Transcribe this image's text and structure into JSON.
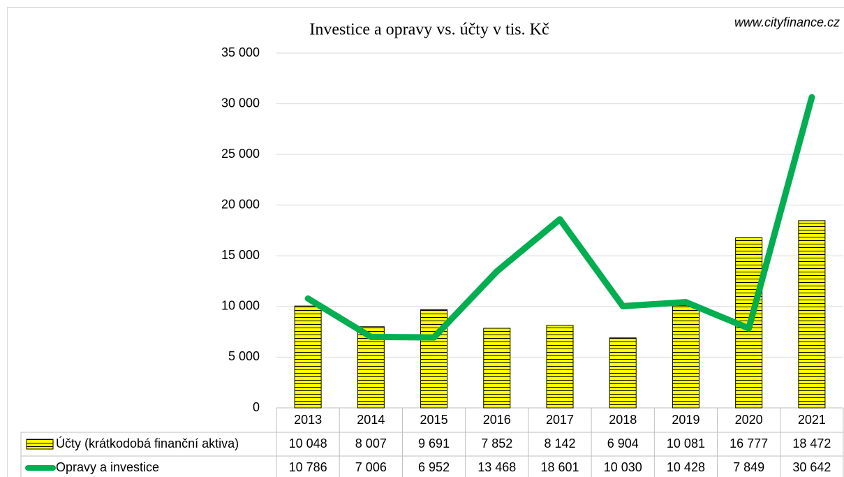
{
  "chart_data": {
    "type": "bar",
    "title": "Investice a opravy vs. účty v tis. Kč",
    "source": "www.cityfinance.cz",
    "categories": [
      "2013",
      "2014",
      "2015",
      "2016",
      "2017",
      "2018",
      "2019",
      "2020",
      "2021"
    ],
    "series": [
      {
        "name": "Účty (krátkodobá finanční aktiva)",
        "type": "bar",
        "color": "#ffff00",
        "values": [
          10048,
          8007,
          9691,
          7852,
          8142,
          6904,
          10081,
          16777,
          18472
        ],
        "value_labels": [
          "10 048",
          "8 007",
          "9 691",
          "7 852",
          "8 142",
          "6 904",
          "10 081",
          "16 777",
          "18 472"
        ]
      },
      {
        "name": "Opravy a investice",
        "type": "line",
        "color": "#00b050",
        "values": [
          10786,
          7006,
          6952,
          13468,
          18601,
          10030,
          10428,
          7849,
          30642
        ],
        "value_labels": [
          "10 786",
          "7 006",
          "6 952",
          "13 468",
          "18 601",
          "10 030",
          "10 428",
          "7 849",
          "30 642"
        ]
      }
    ],
    "ylim": [
      0,
      35000
    ],
    "yticks": [
      0,
      {
        "value": 5000,
        "label": "5 000"
      },
      {
        "value": 10000,
        "label": "10 000"
      },
      {
        "value": 15000,
        "label": "15 000"
      },
      {
        "value": 20000,
        "label": "20 000"
      },
      {
        "value": 25000,
        "label": "25 000"
      },
      {
        "value": 30000,
        "label": "30 000"
      },
      {
        "value": 35000,
        "label": "35 000"
      }
    ],
    "grid": true
  }
}
